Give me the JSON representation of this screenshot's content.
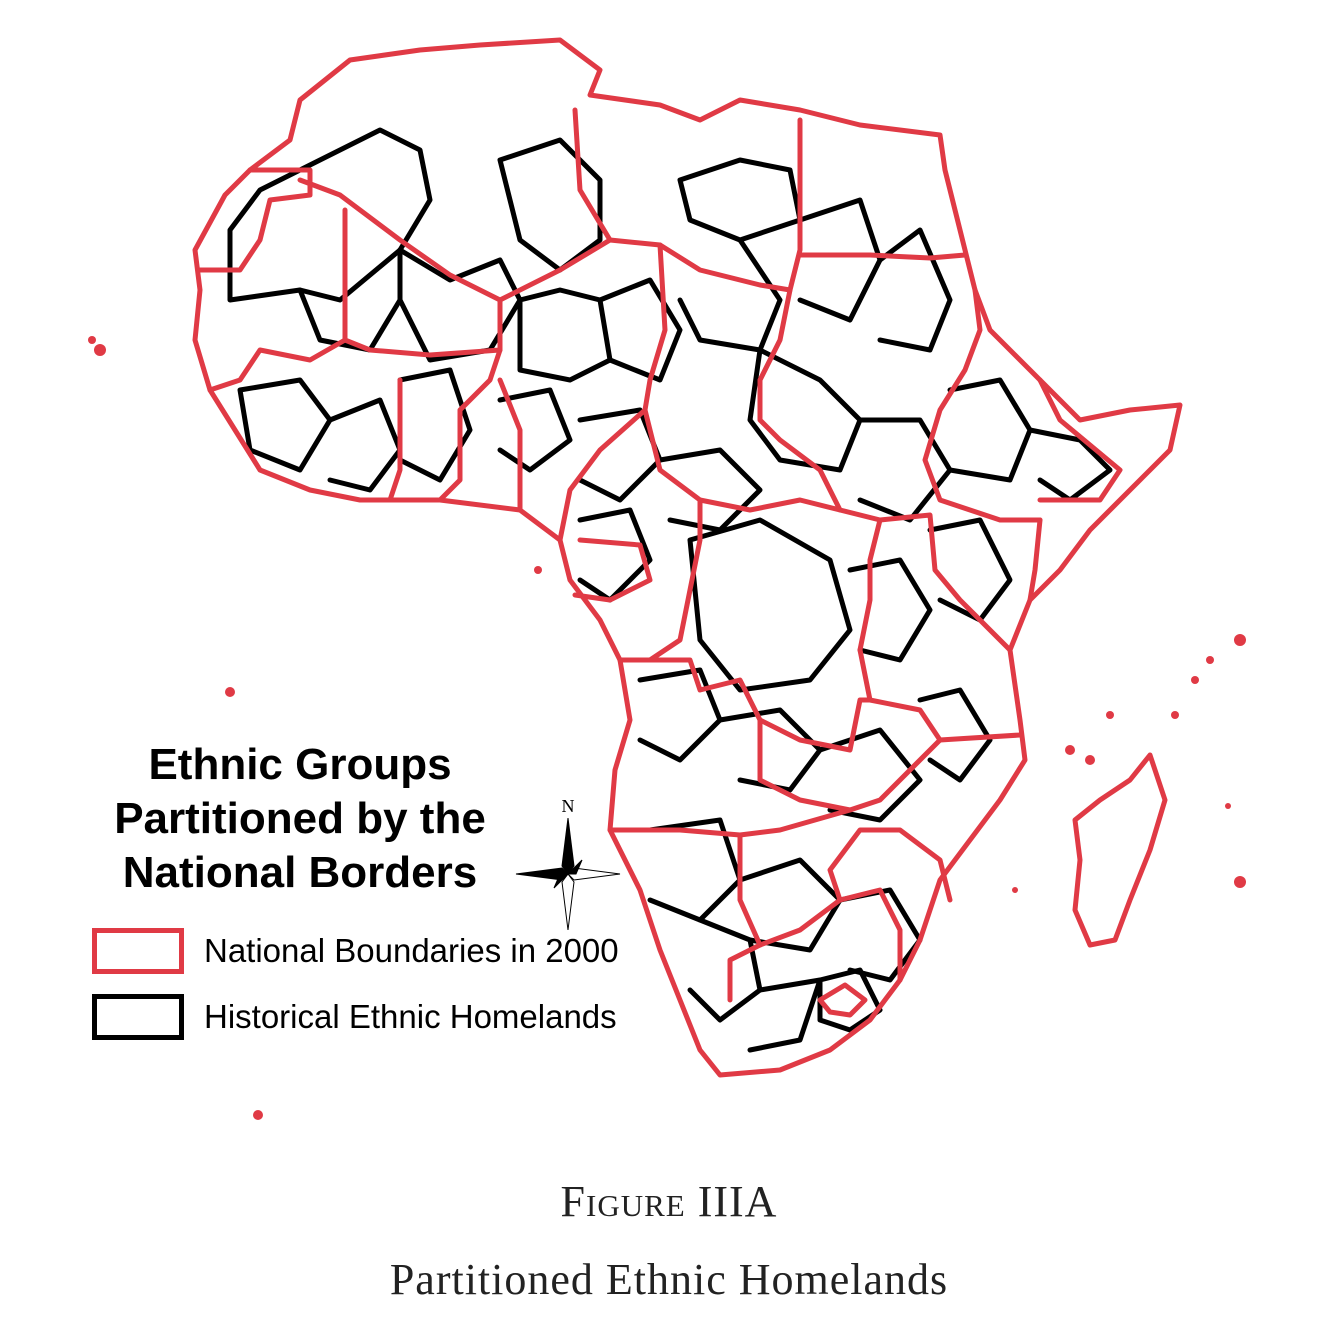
{
  "legend": {
    "title_lines": [
      "Ethnic Groups",
      "Partitioned by the",
      "National Borders"
    ],
    "items": [
      {
        "label": "National Boundaries in 2000",
        "color": "#e03a45"
      },
      {
        "label": "Historical Ethnic Homelands",
        "color": "#000000"
      }
    ]
  },
  "compass": {
    "north_label": "N"
  },
  "caption": {
    "figure_label": "Figure IIIA",
    "title": "Partitioned Ethnic Homelands"
  },
  "colors": {
    "national_boundary": "#e03a45",
    "ethnic_homeland": "#000000",
    "background": "#ffffff"
  }
}
